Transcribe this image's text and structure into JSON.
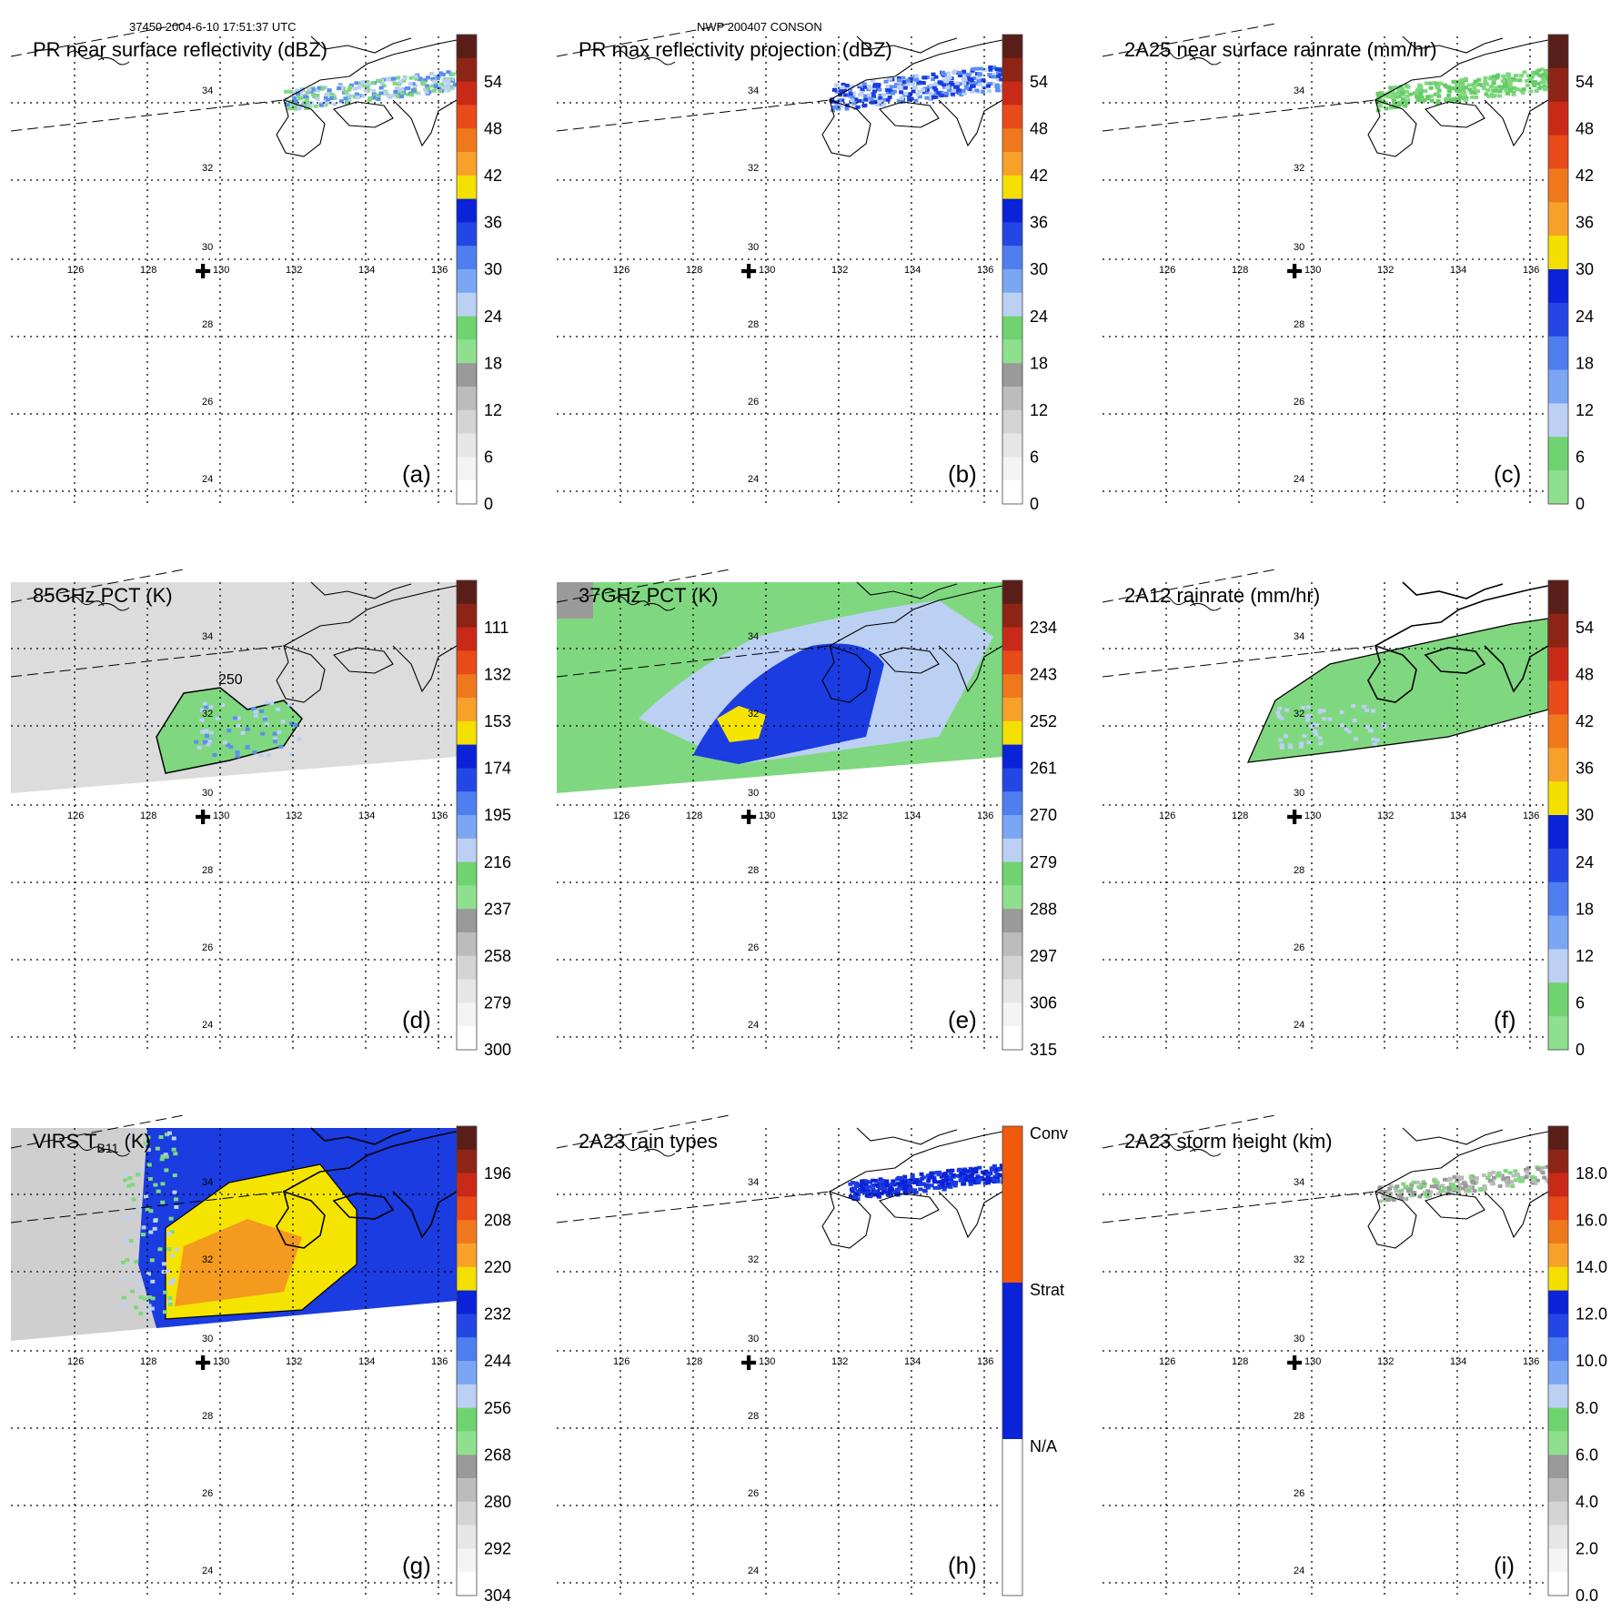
{
  "header": {
    "left": "37450 2004-6-10 17:51:37 UTC",
    "center": "NWP 200407 CONSON"
  },
  "map": {
    "lon_labels": [
      "126",
      "128",
      "130",
      "132",
      "134",
      "136"
    ],
    "lat_labels": [
      "34",
      "32",
      "30",
      "28",
      "26",
      "24"
    ],
    "contour_label_d": "250"
  },
  "colors": {
    "green": "#7fd87f",
    "light_blue": "#bcd0f4",
    "mid_blue": "#5c8ef0",
    "blue": "#1a3ce0",
    "yellow": "#f5e400",
    "orange": "#f39a1f",
    "red": "#e0301e",
    "dark_red": "#5a1e18"
  },
  "chart_data": [
    {
      "id": "a",
      "type": "heatmap",
      "title": "PR near surface reflectivity (dBZ)",
      "panel_label": "(a)",
      "colorbar_ticks": [
        "54",
        "48",
        "42",
        "36",
        "30",
        "24",
        "18",
        "12",
        "6",
        "0"
      ],
      "colorbar_scheme": "precip"
    },
    {
      "id": "b",
      "type": "heatmap",
      "title": "PR max reflectivity projection (dBZ)",
      "panel_label": "(b)",
      "colorbar_ticks": [
        "54",
        "48",
        "42",
        "36",
        "30",
        "24",
        "18",
        "12",
        "6",
        "0"
      ],
      "colorbar_scheme": "precip"
    },
    {
      "id": "c",
      "type": "heatmap",
      "title": "2A25 near surface rainrate (mm/hr)",
      "panel_label": "(c)",
      "colorbar_ticks": [
        "54",
        "48",
        "42",
        "36",
        "30",
        "24",
        "18",
        "12",
        "6",
        "0"
      ],
      "colorbar_scheme": "rain"
    },
    {
      "id": "d",
      "type": "heatmap",
      "title": "85GHz PCT (K)",
      "panel_label": "(d)",
      "colorbar_ticks": [
        "111",
        "132",
        "153",
        "174",
        "195",
        "216",
        "237",
        "258",
        "279",
        "300"
      ],
      "colorbar_scheme": "precip"
    },
    {
      "id": "e",
      "type": "heatmap",
      "title": "37GHz PCT (K)",
      "panel_label": "(e)",
      "colorbar_ticks": [
        "234",
        "243",
        "252",
        "261",
        "270",
        "279",
        "288",
        "297",
        "306",
        "315"
      ],
      "colorbar_scheme": "precip"
    },
    {
      "id": "f",
      "type": "heatmap",
      "title": "2A12 rainrate (mm/hr)",
      "panel_label": "(f)",
      "colorbar_ticks": [
        "54",
        "48",
        "42",
        "36",
        "30",
        "24",
        "18",
        "12",
        "6",
        "0"
      ],
      "colorbar_scheme": "rain"
    },
    {
      "id": "g",
      "type": "heatmap",
      "title": "VIRS T",
      "title_sub": "B11",
      "title_end": " (K)",
      "panel_label": "(g)",
      "colorbar_ticks": [
        "196",
        "208",
        "220",
        "232",
        "244",
        "256",
        "268",
        "280",
        "292",
        "304"
      ],
      "colorbar_scheme": "precip"
    },
    {
      "id": "h",
      "type": "heatmap",
      "title": "2A23 rain types",
      "panel_label": "(h)",
      "colorbar_ticks": [
        "Conv",
        "Strat",
        "N/A"
      ],
      "colorbar_scheme": "types"
    },
    {
      "id": "i",
      "type": "heatmap",
      "title": "2A23 storm height (km)",
      "panel_label": "(i)",
      "colorbar_ticks": [
        "18.0",
        "16.0",
        "14.0",
        "12.0",
        "10.0",
        "8.0",
        "6.0",
        "4.0",
        "2.0",
        "0.0"
      ],
      "colorbar_scheme": "precip"
    }
  ]
}
